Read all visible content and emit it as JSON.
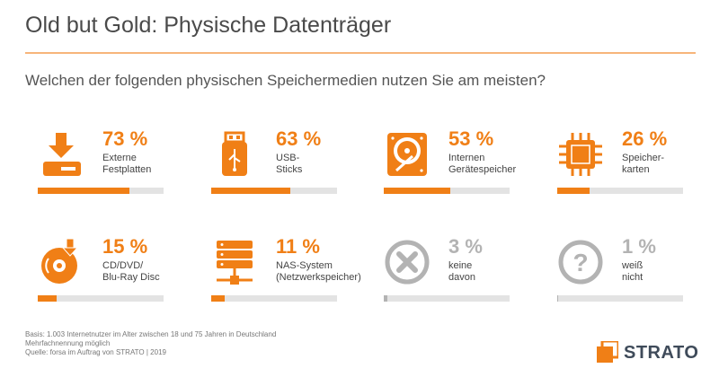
{
  "title": "Old but Gold: Physische Datenträger",
  "question": "Welchen der folgenden physischen Speichermedien nutzen Sie am meisten?",
  "colors": {
    "accent": "#f07f16",
    "muted": "#b3b3b3",
    "track": "#e3e3e3"
  },
  "tiles": [
    {
      "pct_label": "73 %",
      "label": "Externe\nFestplatten",
      "icon": "external-harddrive-icon"
    },
    {
      "pct_label": "63 %",
      "label": "USB-\nSticks",
      "icon": "usb-stick-icon"
    },
    {
      "pct_label": "53 %",
      "label": "Internen\nGerätespeicher",
      "icon": "internal-harddisk-icon"
    },
    {
      "pct_label": "26 %",
      "label": "Speicher-\nkarten",
      "icon": "memory-chip-icon"
    },
    {
      "pct_label": "15 %",
      "label": "CD/DVD/\nBlu-Ray Disc",
      "icon": "disc-icon"
    },
    {
      "pct_label": "11 %",
      "label": "NAS-System\n(Netzwerkspeicher)",
      "icon": "nas-server-icon"
    },
    {
      "pct_label": "3 %",
      "label": "keine\ndavon",
      "icon": "cross-icon"
    },
    {
      "pct_label": "1 %",
      "label": "weiß\nnicht",
      "icon": "question-icon"
    }
  ],
  "chart_data": {
    "type": "bar",
    "categories": [
      "Externe Festplatten",
      "USB-Sticks",
      "Internen Gerätespeicher",
      "Speicherkarten",
      "CD/DVD/Blu-Ray Disc",
      "NAS-System (Netzwerkspeicher)",
      "keine davon",
      "weiß nicht"
    ],
    "values": [
      73,
      63,
      53,
      26,
      15,
      11,
      3,
      1
    ],
    "ylim": [
      0,
      100
    ]
  },
  "footnote": {
    "line1": "Basis: 1.003 Internetnutzer im Alter zwischen 18 und 75 Jahren in Deutschland",
    "line2": "Mehrfachnennung möglich",
    "line3": "Quelle: forsa im Auftrag von STRATO | 2019"
  },
  "logo": {
    "text": "STRATO",
    "icon": "strato-logo-icon"
  }
}
